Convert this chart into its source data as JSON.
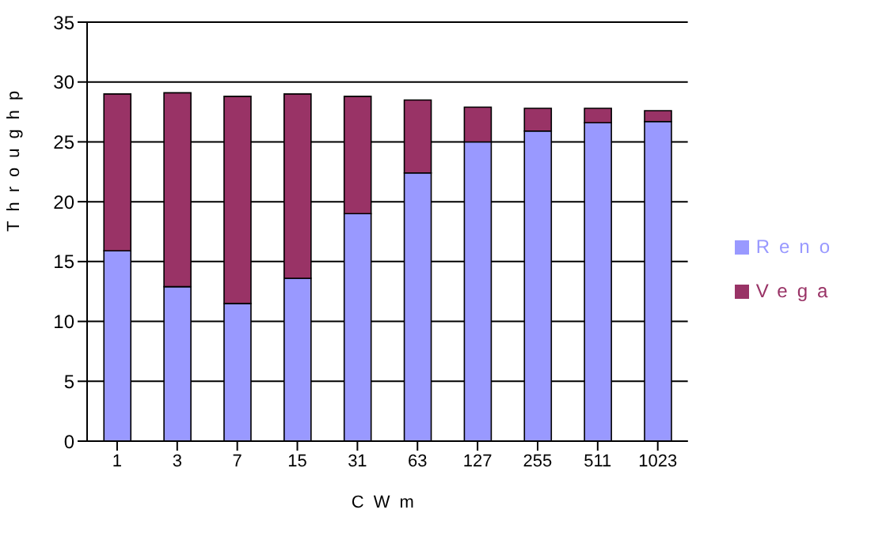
{
  "chart_data": {
    "type": "bar",
    "stacked": true,
    "xlabel": "CWm",
    "ylabel": "Throughp",
    "categories": [
      "1",
      "3",
      "7",
      "15",
      "31",
      "63",
      "127",
      "255",
      "511",
      "1023"
    ],
    "series": [
      {
        "name": "Reno",
        "color": "#9999ff",
        "values": [
          15.9,
          12.9,
          11.5,
          13.6,
          19.0,
          22.4,
          25.0,
          25.9,
          26.6,
          26.7
        ]
      },
      {
        "name": "Vega",
        "color": "#993366",
        "values": [
          13.1,
          16.2,
          17.3,
          15.4,
          9.8,
          6.1,
          2.9,
          1.9,
          1.2,
          0.9
        ]
      }
    ],
    "ylim": [
      0,
      35
    ],
    "yticks": [
      0,
      5,
      10,
      15,
      20,
      25,
      30,
      35
    ],
    "grid": "y",
    "legend": "right"
  }
}
